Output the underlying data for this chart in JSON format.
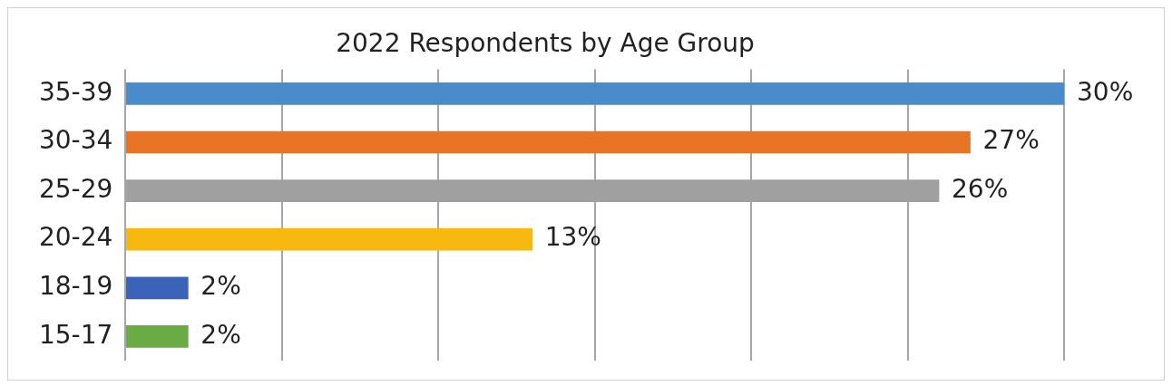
{
  "chart_data": {
    "type": "bar",
    "orientation": "horizontal",
    "title": "2022 Respondents by Age Group",
    "categories": [
      "35-39",
      "30-34",
      "25-29",
      "20-24",
      "18-19",
      "15-17"
    ],
    "values": [
      30,
      27,
      26,
      13,
      2,
      2
    ],
    "colors": [
      "#4a8ccb",
      "#e87426",
      "#a0a0a0",
      "#f7b90f",
      "#3b64b8",
      "#6aab45"
    ],
    "value_labels": [
      "30%",
      "27%",
      "26%",
      "13%",
      "2%",
      "2%"
    ],
    "xlim": [
      0,
      30
    ],
    "xticks": [
      {
        "value": 0,
        "label": null
      },
      {
        "value": 5,
        "label": null
      },
      {
        "value": 10,
        "label": null
      },
      {
        "value": 15,
        "label": null
      },
      {
        "value": 20,
        "label": null
      },
      {
        "value": 25,
        "label": null
      },
      {
        "value": 30,
        "label": null
      }
    ],
    "tick_labels": "y",
    "grid": "x",
    "legend": false
  }
}
